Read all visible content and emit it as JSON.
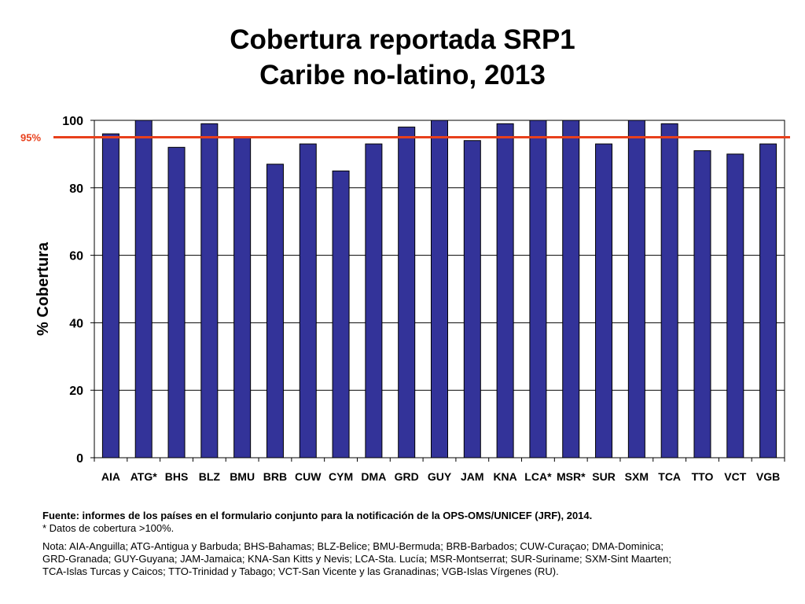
{
  "chart_data": {
    "type": "bar",
    "title": [
      "Cobertura reportada SRP1",
      "Caribe no-latino, 2013"
    ],
    "xlabel": "",
    "ylabel": "% Cobertura",
    "ylim": [
      0,
      100
    ],
    "yticks": [
      0,
      20,
      40,
      60,
      80,
      100
    ],
    "grid": true,
    "categories": [
      "AIA",
      "ATG*",
      "BHS",
      "BLZ",
      "BMU",
      "BRB",
      "CUW",
      "CYM",
      "DMA",
      "GRD",
      "GUY",
      "JAM",
      "KNA",
      "LCA*",
      "MSR*",
      "SUR",
      "SXM",
      "TCA",
      "TTO",
      "VCT",
      "VGB"
    ],
    "values": [
      96,
      100,
      92,
      99,
      95,
      87,
      93,
      85,
      93,
      98,
      100,
      94,
      99,
      100,
      100,
      93,
      100,
      99,
      91,
      90,
      93
    ],
    "bar_color": "#333399",
    "reference_line": {
      "value": 95,
      "label": "95%",
      "color": "#e8401c"
    }
  },
  "notes": {
    "source": "Fuente: informes de los países en el formulario conjunto para la notificación de la OPS-OMS/UNICEF (JRF), 2014.",
    "asterisk": "* Datos de cobertura >100%.",
    "legend_lines": [
      "Nota: AIA-Anguilla; ATG-Antigua y Barbuda; BHS-Bahamas; BLZ-Belice; BMU-Bermuda; BRB-Barbados; CUW-Curaçao; DMA-Dominica;",
      "GRD-Granada; GUY-Guyana; JAM-Jamaica; KNA-San Kitts y Nevis; LCA-Sta. Lucía; MSR-Montserrat; SUR-Suriname; SXM-Sint Maarten;",
      "TCA-Islas Turcas y Caicos; TTO-Trinidad y Tabago; VCT-San Vicente y las Granadinas; VGB-Islas Vírgenes (RU)."
    ]
  }
}
